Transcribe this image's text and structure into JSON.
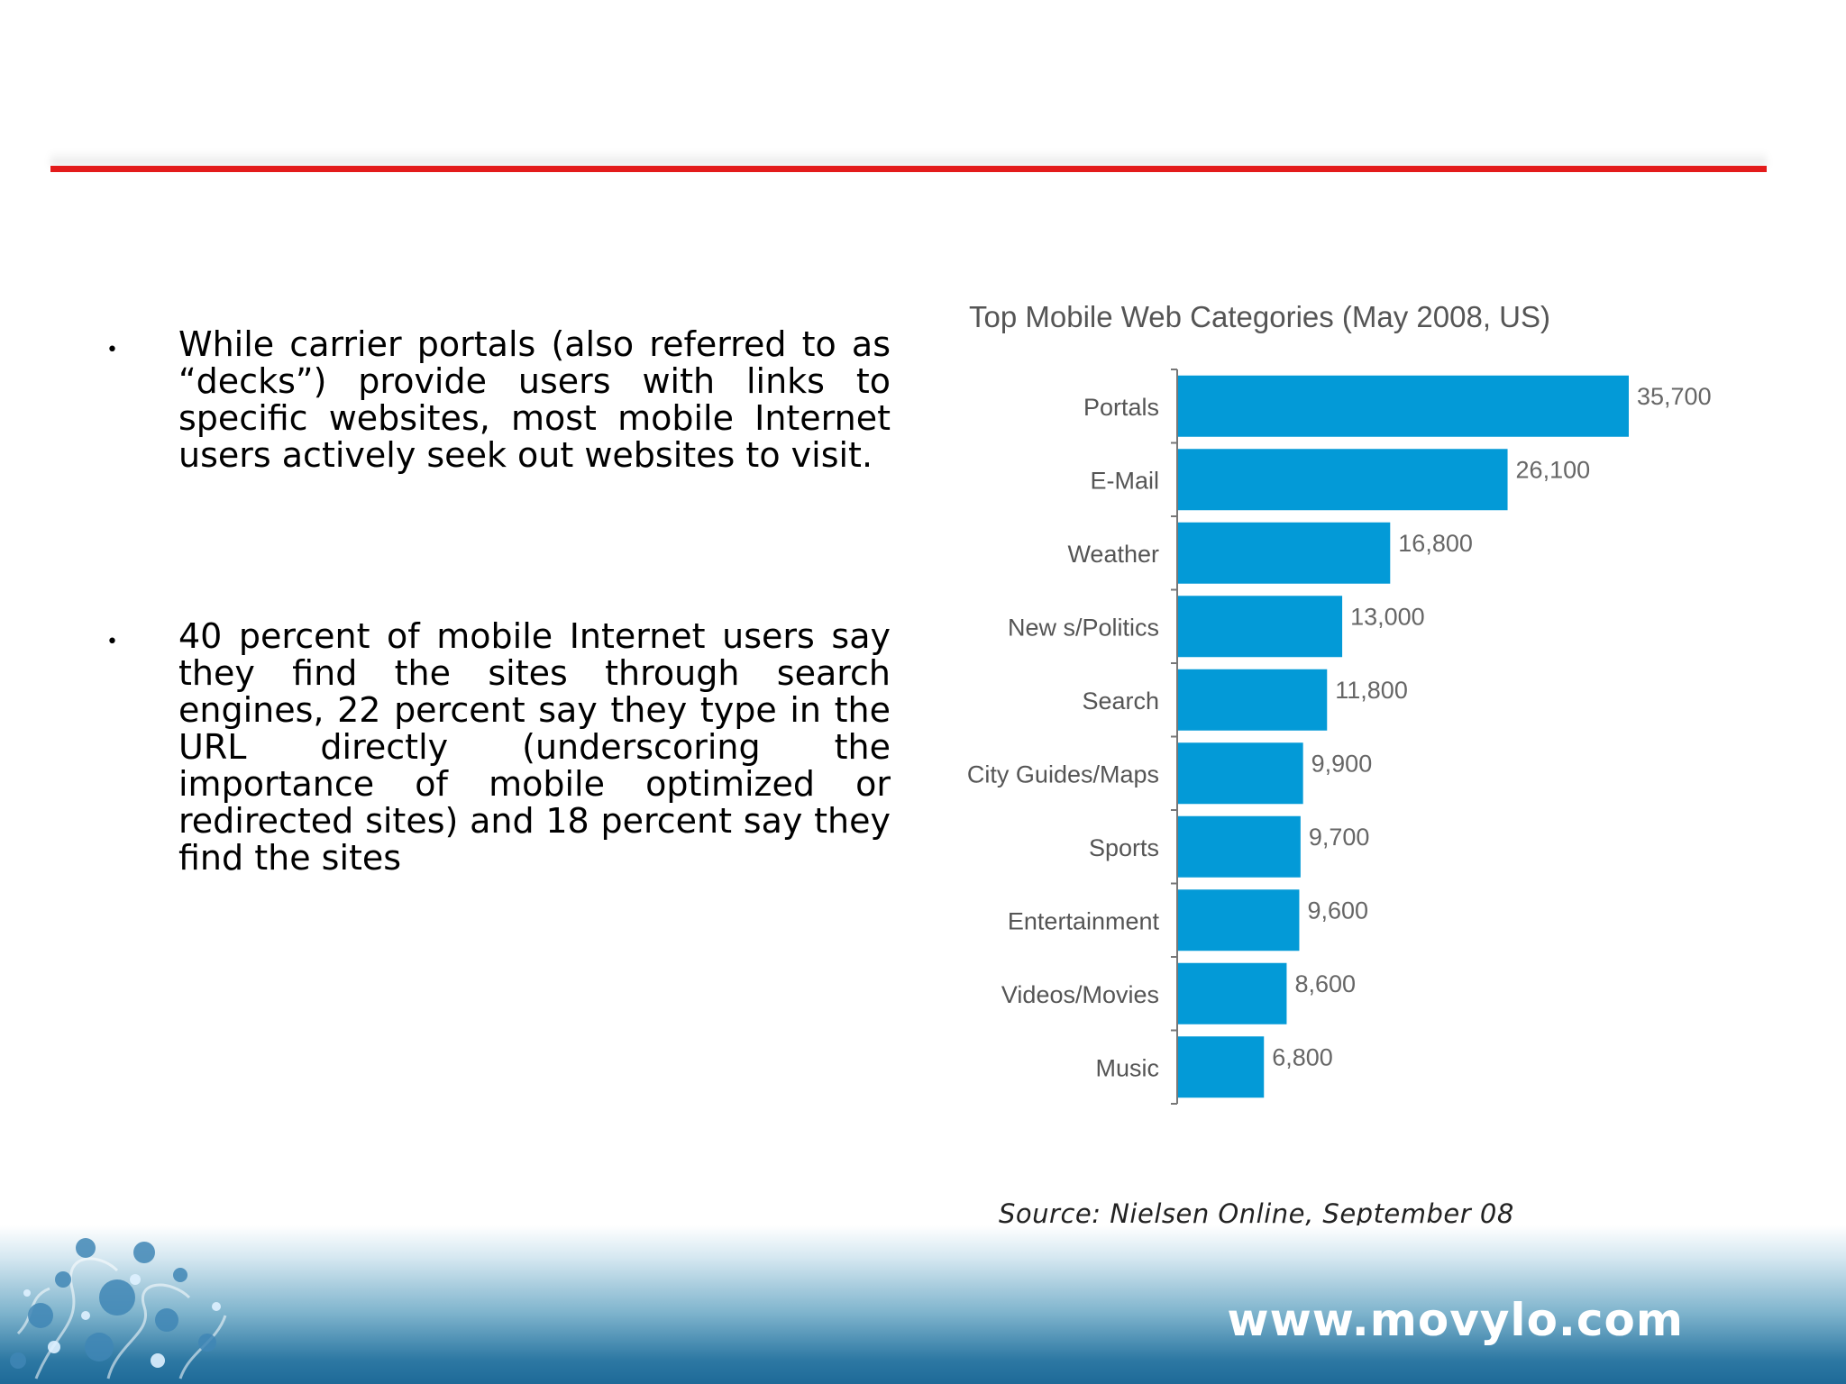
{
  "slide": {
    "bullets": [
      "While carrier portals (also referred to as “decks”) provide users with links to specific websites, most mobile Internet users actively seek out websites to visit.",
      "40 percent of mobile Internet users say they find the sites through search engines, 22 percent say they type in the URL directly (underscoring the importance of mobile optimized or redirected sites) and 18 percent say they find the sites"
    ],
    "bullet_glyph": "•",
    "source": "Source: Nielsen Online, September 08",
    "website": "www.movylo.com",
    "colors": {
      "rule": "#e31b1b",
      "bar": "#039ad7",
      "footer": "#1e6a98"
    }
  },
  "chart_data": {
    "type": "bar",
    "orientation": "horizontal",
    "title": "Top Mobile Web Categories (May 2008, US)",
    "categories": [
      "Portals",
      "E-Mail",
      "Weather",
      "New s/Politics",
      "Search",
      "City Guides/Maps",
      "Sports",
      "Entertainment",
      "Videos/Movies",
      "Music"
    ],
    "values": [
      35700,
      26100,
      16800,
      13000,
      11800,
      9900,
      9700,
      9600,
      8600,
      6800
    ],
    "value_labels": [
      "35,700",
      "26,100",
      "16,800",
      "13,000",
      "11,800",
      "9,900",
      "9,700",
      "9,600",
      "8,600",
      "6,800"
    ],
    "xlim": [
      0,
      35700
    ],
    "grid": false,
    "legend": "none"
  }
}
